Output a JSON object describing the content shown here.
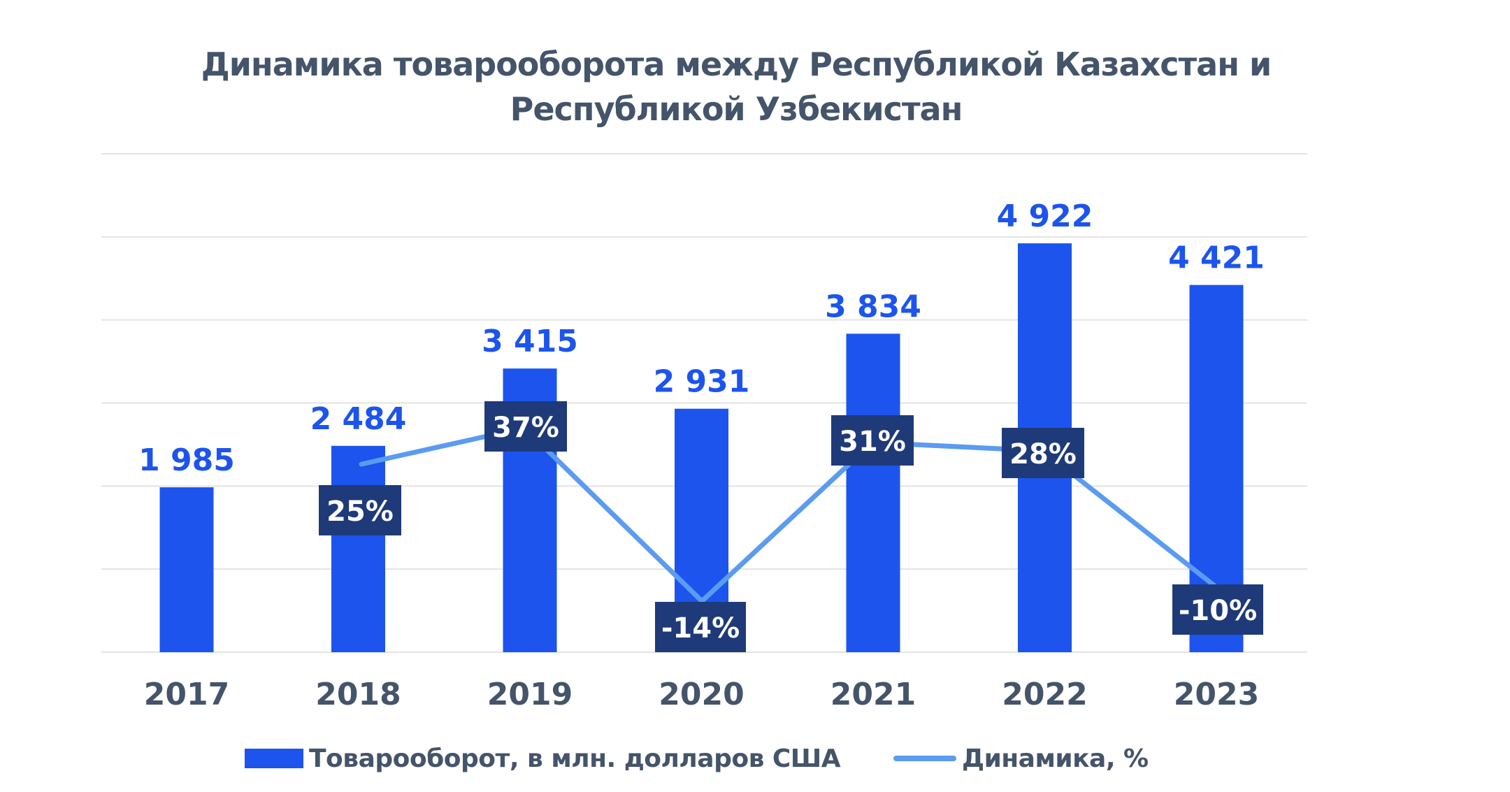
{
  "colors": {
    "bar": "#1c54ed",
    "line": "#5b9bf0",
    "badge_bg": "#1f3a78",
    "badge_text": "#ffffff",
    "value_label": "#1c54ed",
    "axis_text": "#44546a",
    "grid": "#e3e3e3"
  },
  "chart_data": {
    "type": "bar",
    "title": [
      "Динамика товарооборота между Республикой Казахстан и",
      "Республикой Узбекистан"
    ],
    "categories": [
      "2017",
      "2018",
      "2019",
      "2020",
      "2021",
      "2022",
      "2023"
    ],
    "series": [
      {
        "name": "Товарооборот, в млн. долларов США",
        "type": "bar",
        "values": [
          1985,
          2484,
          3415,
          2931,
          3834,
          4922,
          4421
        ],
        "labels": [
          "1 985",
          "2 484",
          "3 415",
          "2 931",
          "3 834",
          "4 922",
          "4 421"
        ]
      },
      {
        "name": "Динамика, %",
        "type": "line",
        "values": [
          null,
          25,
          37,
          -14,
          31,
          28,
          -10
        ],
        "labels": [
          "",
          "25%",
          "37%",
          "-14%",
          "31%",
          "28%",
          "-10%"
        ]
      }
    ],
    "ylim": [
      0,
      6000
    ],
    "y2lim": [
      -20,
      50
    ],
    "grid": true,
    "y_axis_labels": false,
    "legend": "bottom"
  }
}
